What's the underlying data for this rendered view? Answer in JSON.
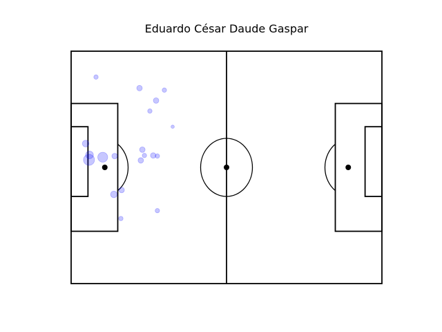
{
  "chart_data": {
    "type": "scatter",
    "title": "Eduardo César Daude Gaspar",
    "xlabel": "",
    "ylabel": "",
    "xlim": [
      0,
      120
    ],
    "ylim": [
      0,
      80
    ],
    "grid": false,
    "colors": {
      "lines": "#000000",
      "points": "#0000ff",
      "spot": "#000000"
    },
    "series": [
      {
        "points": [
          {
            "x": 9.6,
            "y": 71.1,
            "size": 2
          },
          {
            "x": 26.4,
            "y": 67.3,
            "size": 3
          },
          {
            "x": 36.0,
            "y": 66.6,
            "size": 2
          },
          {
            "x": 32.8,
            "y": 63.0,
            "size": 3
          },
          {
            "x": 30.4,
            "y": 59.4,
            "size": 2
          },
          {
            "x": 39.2,
            "y": 54.0,
            "size": 1
          },
          {
            "x": 5.6,
            "y": 48.2,
            "size": 4
          },
          {
            "x": 27.5,
            "y": 46.1,
            "size": 3
          },
          {
            "x": 28.3,
            "y": 44.1,
            "size": 2
          },
          {
            "x": 31.7,
            "y": 44.1,
            "size": 3
          },
          {
            "x": 33.3,
            "y": 43.9,
            "size": 2
          },
          {
            "x": 7.1,
            "y": 44.3,
            "size": 5
          },
          {
            "x": 12.2,
            "y": 43.5,
            "size": 7
          },
          {
            "x": 16.8,
            "y": 43.9,
            "size": 3
          },
          {
            "x": 26.9,
            "y": 42.4,
            "size": 3
          },
          {
            "x": 6.9,
            "y": 42.6,
            "size": 8
          },
          {
            "x": 19.5,
            "y": 32.2,
            "size": 3
          },
          {
            "x": 16.5,
            "y": 30.7,
            "size": 4
          },
          {
            "x": 33.3,
            "y": 25.1,
            "size": 2
          },
          {
            "x": 19.2,
            "y": 22.4,
            "size": 2
          }
        ]
      }
    ]
  }
}
